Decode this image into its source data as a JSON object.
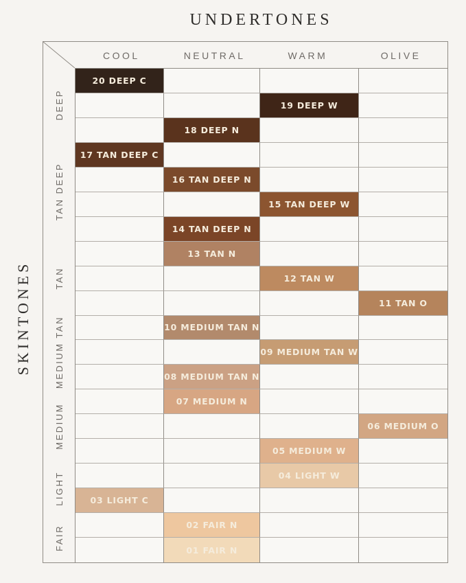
{
  "page": {
    "top_title": "UNDERTONES",
    "left_title": "SKINTONES"
  },
  "chart_data": {
    "type": "table",
    "title": "UNDERTONES",
    "row_axis_label": "SKINTONES",
    "columns": [
      "COOL",
      "NEUTRAL",
      "WARM",
      "OLIVE"
    ],
    "grid": {
      "rows": 20,
      "cols": 4
    },
    "row_groups": [
      {
        "label": "DEEP",
        "row_span": 3
      },
      {
        "label": "TAN DEEP",
        "row_span": 4
      },
      {
        "label": "TAN",
        "row_span": 3
      },
      {
        "label": "MEDIUM TAN",
        "row_span": 3
      },
      {
        "label": "MEDIUM",
        "row_span": 3
      },
      {
        "label": "LIGHT",
        "row_span": 2
      },
      {
        "label": "FAIR",
        "row_span": 2
      }
    ],
    "shades": [
      {
        "row": 1,
        "column": "COOL",
        "group": "DEEP",
        "label": "20 DEEP C",
        "color": "#32231a"
      },
      {
        "row": 2,
        "column": "WARM",
        "group": "DEEP",
        "label": "19 DEEP W",
        "color": "#3f2517"
      },
      {
        "row": 3,
        "column": "NEUTRAL",
        "group": "DEEP",
        "label": "18 DEEP N",
        "color": "#5a331d"
      },
      {
        "row": 4,
        "column": "COOL",
        "group": "TAN DEEP",
        "label": "17 TAN DEEP C",
        "color": "#5f3721"
      },
      {
        "row": 5,
        "column": "NEUTRAL",
        "group": "TAN DEEP",
        "label": "16 TAN DEEP N",
        "color": "#7b4a2b"
      },
      {
        "row": 6,
        "column": "WARM",
        "group": "TAN DEEP",
        "label": "15 TAN DEEP W",
        "color": "#8c5530"
      },
      {
        "row": 7,
        "column": "NEUTRAL",
        "group": "TAN DEEP",
        "label": "14 TAN DEEP N",
        "color": "#7b4527"
      },
      {
        "row": 8,
        "column": "NEUTRAL",
        "group": "TAN",
        "label": "13 TAN N",
        "color": "#b08263"
      },
      {
        "row": 9,
        "column": "WARM",
        "group": "TAN",
        "label": "12 TAN W",
        "color": "#bd8a60"
      },
      {
        "row": 10,
        "column": "OLIVE",
        "group": "TAN",
        "label": "11 TAN O",
        "color": "#b5845c"
      },
      {
        "row": 11,
        "column": "NEUTRAL",
        "group": "MEDIUM TAN",
        "label": "10 MEDIUM TAN N",
        "color": "#b28a6c"
      },
      {
        "row": 12,
        "column": "WARM",
        "group": "MEDIUM TAN",
        "label": "09 MEDIUM TAN W",
        "color": "#c69c73"
      },
      {
        "row": 13,
        "column": "NEUTRAL",
        "group": "MEDIUM TAN",
        "label": "08 MEDIUM TAN N",
        "color": "#cba184"
      },
      {
        "row": 14,
        "column": "NEUTRAL",
        "group": "MEDIUM",
        "label": "07 MEDIUM N",
        "color": "#d7a683"
      },
      {
        "row": 15,
        "column": "OLIVE",
        "group": "MEDIUM",
        "label": "06 MEDIUM O",
        "color": "#d2a683"
      },
      {
        "row": 16,
        "column": "WARM",
        "group": "MEDIUM",
        "label": "05 MEDIUM W",
        "color": "#dfb18c"
      },
      {
        "row": 17,
        "column": "WARM",
        "group": "LIGHT",
        "label": "04 LIGHT W",
        "color": "#e8c9a7"
      },
      {
        "row": 18,
        "column": "COOL",
        "group": "LIGHT",
        "label": "03 LIGHT C",
        "color": "#d8b495"
      },
      {
        "row": 19,
        "column": "NEUTRAL",
        "group": "FAIR",
        "label": "02 FAIR N",
        "color": "#eec79f"
      },
      {
        "row": 20,
        "column": "NEUTRAL",
        "group": "FAIR",
        "label": "01 FAIR N",
        "color": "#f2dab9"
      }
    ],
    "colors": {
      "page_bg": "#f6f4f1",
      "cell_bg": "#f9f8f5",
      "outer_border": "#8f8b85",
      "grid_line": "#b3aea8",
      "header_text": "#6e6a66",
      "title_text": "#2f2d2b",
      "swatch_text": "#f5ecdc"
    },
    "legend_position": "none",
    "grid_on": true
  }
}
